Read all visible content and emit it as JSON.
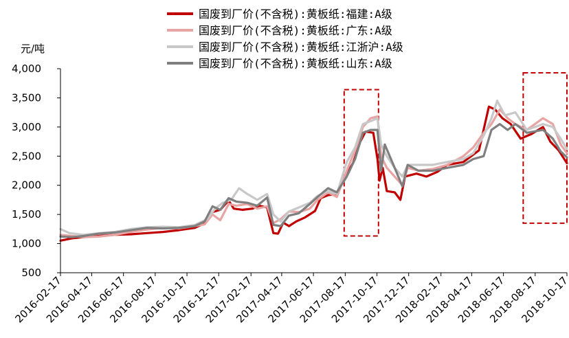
{
  "chart_data": {
    "type": "line",
    "ylabel": "元/吨",
    "ylim": [
      500,
      4000
    ],
    "yticks": [
      "500",
      "1,000",
      "1,500",
      "2,000",
      "2,500",
      "3,000",
      "3,500",
      "4,000"
    ],
    "ytick_values": [
      500,
      1000,
      1500,
      2000,
      2500,
      3000,
      3500,
      4000
    ],
    "xlim": [
      "2016-02-17",
      "2018-10-17"
    ],
    "xticks": [
      "2016-02-17",
      "2016-04-17",
      "2016-06-17",
      "2016-08-17",
      "2016-10-17",
      "2016-12-17",
      "2017-02-17",
      "2017-04-17",
      "2017-06-17",
      "2017-08-17",
      "2017-10-17",
      "2017-12-17",
      "2018-02-17",
      "2018-04-17",
      "2018-06-17",
      "2018-08-17",
      "2018-10-17"
    ],
    "legend_position": "top",
    "grid": false,
    "highlight_boxes": [
      {
        "x0": "2017-08-15",
        "x1": "2017-10-20",
        "y0": 1130,
        "y1": 3640,
        "color": "#C00000"
      },
      {
        "x0": "2018-07-25",
        "x1": "2018-10-17",
        "y0": 1350,
        "y1": 3930,
        "color": "#C00000"
      }
    ],
    "series": [
      {
        "name": "国废到厂价(不含税):黄板纸:福建:A级",
        "color": "#C00000",
        "width": 3.2,
        "points": [
          [
            "2016-02-17",
            1050
          ],
          [
            "2016-03-10",
            1090
          ],
          [
            "2016-04-01",
            1110
          ],
          [
            "2016-05-01",
            1130
          ],
          [
            "2016-06-01",
            1150
          ],
          [
            "2016-07-01",
            1160
          ],
          [
            "2016-08-01",
            1180
          ],
          [
            "2016-09-01",
            1200
          ],
          [
            "2016-10-01",
            1230
          ],
          [
            "2016-11-01",
            1270
          ],
          [
            "2016-11-20",
            1350
          ],
          [
            "2016-12-05",
            1540
          ],
          [
            "2016-12-20",
            1580
          ],
          [
            "2017-01-05",
            1740
          ],
          [
            "2017-01-15",
            1600
          ],
          [
            "2017-02-01",
            1580
          ],
          [
            "2017-02-20",
            1600
          ],
          [
            "2017-03-05",
            1650
          ],
          [
            "2017-03-20",
            1620
          ],
          [
            "2017-04-01",
            1180
          ],
          [
            "2017-04-10",
            1170
          ],
          [
            "2017-04-20",
            1360
          ],
          [
            "2017-05-01",
            1300
          ],
          [
            "2017-05-15",
            1380
          ],
          [
            "2017-06-01",
            1450
          ],
          [
            "2017-06-20",
            1560
          ],
          [
            "2017-07-01",
            1780
          ],
          [
            "2017-07-15",
            1830
          ],
          [
            "2017-08-01",
            1850
          ],
          [
            "2017-08-20",
            2200
          ],
          [
            "2017-09-01",
            2380
          ],
          [
            "2017-09-15",
            2750
          ],
          [
            "2017-09-25",
            2920
          ],
          [
            "2017-10-10",
            2900
          ],
          [
            "2017-10-18",
            2450
          ],
          [
            "2017-10-22",
            2080
          ],
          [
            "2017-10-28",
            2300
          ],
          [
            "2017-11-05",
            1900
          ],
          [
            "2017-11-20",
            1880
          ],
          [
            "2017-12-01",
            1750
          ],
          [
            "2017-12-10",
            2150
          ],
          [
            "2018-01-01",
            2200
          ],
          [
            "2018-01-20",
            2150
          ],
          [
            "2018-02-10",
            2230
          ],
          [
            "2018-03-01",
            2350
          ],
          [
            "2018-04-01",
            2400
          ],
          [
            "2018-05-01",
            2600
          ],
          [
            "2018-05-20",
            3350
          ],
          [
            "2018-06-01",
            3300
          ],
          [
            "2018-06-15",
            3150
          ],
          [
            "2018-07-01",
            3050
          ],
          [
            "2018-07-20",
            2800
          ],
          [
            "2018-08-10",
            2880
          ],
          [
            "2018-09-01",
            3000
          ],
          [
            "2018-09-15",
            2750
          ],
          [
            "2018-10-01",
            2600
          ],
          [
            "2018-10-17",
            2380
          ]
        ]
      },
      {
        "name": "国废到厂价(不含税):黄板纸:广东:A级",
        "color": "#E8A3A3",
        "width": 3.2,
        "points": [
          [
            "2016-02-17",
            1150
          ],
          [
            "2016-03-10",
            1130
          ],
          [
            "2016-04-01",
            1110
          ],
          [
            "2016-05-01",
            1120
          ],
          [
            "2016-06-01",
            1150
          ],
          [
            "2016-07-01",
            1200
          ],
          [
            "2016-08-01",
            1240
          ],
          [
            "2016-09-01",
            1270
          ],
          [
            "2016-10-01",
            1260
          ],
          [
            "2016-11-01",
            1300
          ],
          [
            "2016-11-20",
            1330
          ],
          [
            "2016-12-05",
            1500
          ],
          [
            "2016-12-20",
            1400
          ],
          [
            "2017-01-05",
            1680
          ],
          [
            "2017-01-20",
            1650
          ],
          [
            "2017-02-10",
            1680
          ],
          [
            "2017-03-01",
            1600
          ],
          [
            "2017-03-20",
            1640
          ],
          [
            "2017-04-01",
            1350
          ],
          [
            "2017-04-15",
            1420
          ],
          [
            "2017-05-01",
            1550
          ],
          [
            "2017-05-20",
            1540
          ],
          [
            "2017-06-10",
            1600
          ],
          [
            "2017-06-25",
            1750
          ],
          [
            "2017-07-15",
            1880
          ],
          [
            "2017-08-01",
            1800
          ],
          [
            "2017-08-20",
            2250
          ],
          [
            "2017-09-05",
            2600
          ],
          [
            "2017-09-20",
            3000
          ],
          [
            "2017-10-05",
            3150
          ],
          [
            "2017-10-18",
            3180
          ],
          [
            "2017-10-25",
            2500
          ],
          [
            "2017-11-05",
            2300
          ],
          [
            "2017-11-20",
            2150
          ],
          [
            "2017-12-05",
            2000
          ],
          [
            "2017-12-15",
            2300
          ],
          [
            "2018-01-05",
            2250
          ],
          [
            "2018-02-01",
            2280
          ],
          [
            "2018-03-01",
            2350
          ],
          [
            "2018-04-01",
            2500
          ],
          [
            "2018-04-20",
            2650
          ],
          [
            "2018-05-10",
            2900
          ],
          [
            "2018-05-25",
            3050
          ],
          [
            "2018-06-10",
            3300
          ],
          [
            "2018-06-25",
            3150
          ],
          [
            "2018-07-10",
            3050
          ],
          [
            "2018-08-01",
            2950
          ],
          [
            "2018-09-01",
            3150
          ],
          [
            "2018-09-20",
            3050
          ],
          [
            "2018-10-05",
            2700
          ],
          [
            "2018-10-17",
            2550
          ]
        ]
      },
      {
        "name": "国废到厂价(不含税):黄板纸:江浙沪:A级",
        "color": "#C8C8C8",
        "width": 3.2,
        "points": [
          [
            "2016-02-17",
            1250
          ],
          [
            "2016-03-05",
            1180
          ],
          [
            "2016-04-01",
            1150
          ],
          [
            "2016-05-01",
            1180
          ],
          [
            "2016-06-01",
            1200
          ],
          [
            "2016-07-01",
            1250
          ],
          [
            "2016-08-01",
            1280
          ],
          [
            "2016-09-01",
            1290
          ],
          [
            "2016-10-01",
            1280
          ],
          [
            "2016-11-01",
            1320
          ],
          [
            "2016-11-25",
            1420
          ],
          [
            "2016-12-10",
            1600
          ],
          [
            "2016-12-25",
            1700
          ],
          [
            "2017-01-10",
            1750
          ],
          [
            "2017-01-25",
            1950
          ],
          [
            "2017-02-10",
            1850
          ],
          [
            "2017-03-01",
            1750
          ],
          [
            "2017-03-20",
            1850
          ],
          [
            "2017-04-01",
            1500
          ],
          [
            "2017-04-15",
            1380
          ],
          [
            "2017-05-01",
            1550
          ],
          [
            "2017-05-20",
            1620
          ],
          [
            "2017-06-10",
            1700
          ],
          [
            "2017-06-25",
            1820
          ],
          [
            "2017-07-15",
            1900
          ],
          [
            "2017-08-01",
            1850
          ],
          [
            "2017-08-20",
            2400
          ],
          [
            "2017-09-05",
            2650
          ],
          [
            "2017-09-20",
            3050
          ],
          [
            "2017-10-05",
            3100
          ],
          [
            "2017-10-18",
            3150
          ],
          [
            "2017-10-25",
            2700
          ],
          [
            "2017-11-05",
            2500
          ],
          [
            "2017-11-20",
            2300
          ],
          [
            "2017-12-05",
            2150
          ],
          [
            "2017-12-15",
            2350
          ],
          [
            "2018-01-05",
            2350
          ],
          [
            "2018-02-01",
            2350
          ],
          [
            "2018-03-01",
            2400
          ],
          [
            "2018-04-01",
            2450
          ],
          [
            "2018-04-20",
            2550
          ],
          [
            "2018-05-10",
            2850
          ],
          [
            "2018-05-25",
            3150
          ],
          [
            "2018-06-05",
            3450
          ],
          [
            "2018-06-20",
            3200
          ],
          [
            "2018-07-10",
            3250
          ],
          [
            "2018-08-01",
            2950
          ],
          [
            "2018-09-01",
            3050
          ],
          [
            "2018-09-20",
            3000
          ],
          [
            "2018-10-05",
            2800
          ],
          [
            "2018-10-17",
            2620
          ]
        ]
      },
      {
        "name": "国废到厂价(不含税):黄板纸:山东:A级",
        "color": "#7F7F7F",
        "width": 3.2,
        "points": [
          [
            "2016-02-17",
            1120
          ],
          [
            "2016-03-10",
            1110
          ],
          [
            "2016-04-01",
            1130
          ],
          [
            "2016-05-01",
            1170
          ],
          [
            "2016-06-01",
            1190
          ],
          [
            "2016-07-01",
            1230
          ],
          [
            "2016-08-01",
            1270
          ],
          [
            "2016-09-01",
            1260
          ],
          [
            "2016-10-01",
            1270
          ],
          [
            "2016-11-01",
            1300
          ],
          [
            "2016-11-20",
            1380
          ],
          [
            "2016-12-05",
            1640
          ],
          [
            "2016-12-20",
            1580
          ],
          [
            "2017-01-05",
            1780
          ],
          [
            "2017-01-20",
            1720
          ],
          [
            "2017-02-10",
            1700
          ],
          [
            "2017-03-01",
            1650
          ],
          [
            "2017-03-20",
            1790
          ],
          [
            "2017-04-01",
            1320
          ],
          [
            "2017-04-15",
            1300
          ],
          [
            "2017-05-01",
            1480
          ],
          [
            "2017-05-20",
            1520
          ],
          [
            "2017-06-10",
            1680
          ],
          [
            "2017-06-25",
            1800
          ],
          [
            "2017-07-15",
            1950
          ],
          [
            "2017-08-01",
            1880
          ],
          [
            "2017-08-20",
            2150
          ],
          [
            "2017-09-05",
            2450
          ],
          [
            "2017-09-20",
            2900
          ],
          [
            "2017-10-05",
            2950
          ],
          [
            "2017-10-18",
            2950
          ],
          [
            "2017-10-25",
            2250
          ],
          [
            "2017-11-01",
            2700
          ],
          [
            "2017-11-20",
            2300
          ],
          [
            "2017-12-05",
            1980
          ],
          [
            "2017-12-15",
            2350
          ],
          [
            "2018-01-05",
            2250
          ],
          [
            "2018-02-01",
            2250
          ],
          [
            "2018-03-01",
            2300
          ],
          [
            "2018-04-01",
            2350
          ],
          [
            "2018-04-20",
            2450
          ],
          [
            "2018-05-10",
            2500
          ],
          [
            "2018-05-25",
            2950
          ],
          [
            "2018-06-10",
            3050
          ],
          [
            "2018-06-25",
            2950
          ],
          [
            "2018-07-10",
            3050
          ],
          [
            "2018-08-01",
            2900
          ],
          [
            "2018-09-01",
            2950
          ],
          [
            "2018-09-20",
            2800
          ],
          [
            "2018-10-05",
            2580
          ],
          [
            "2018-10-17",
            2480
          ]
        ]
      }
    ]
  }
}
